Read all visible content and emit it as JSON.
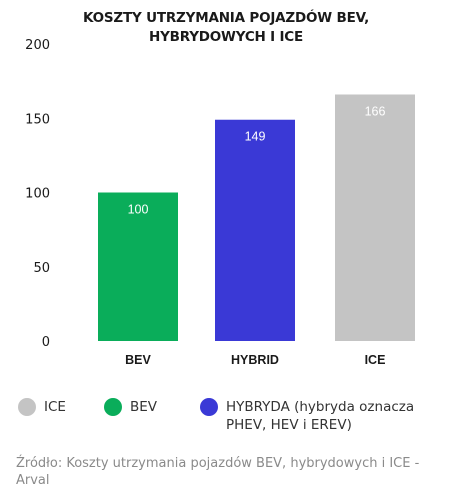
{
  "title": {
    "line1": "KOSZTY UTRZYMANIA POJAZDÓW BEV,",
    "line2": "HYBRYDOWYCH I ICE"
  },
  "chart_data": {
    "type": "bar",
    "title": "KOSZTY UTRZYMANIA POJAZDÓW BEV, HYBRYDOWYCH I ICE",
    "categories": [
      "BEV",
      "HYBRID",
      "ICE"
    ],
    "values": [
      100,
      149,
      166
    ],
    "data_labels": [
      "100",
      "149",
      "166"
    ],
    "colors": [
      "#0aad5a",
      "#3a39d6",
      "#c4c4c4"
    ],
    "ylim": [
      0,
      200
    ],
    "yticks": [
      "0",
      "50",
      "100",
      "150",
      "200"
    ],
    "grid": false,
    "legend_position": "bottom"
  },
  "legend": [
    {
      "label": "ICE",
      "color": "#c4c4c4"
    },
    {
      "label": "BEV",
      "color": "#0aad5a"
    },
    {
      "label": "HYBRYDA (hybryda oznacza",
      "label2": "PHEV, HEV i EREV)",
      "color": "#3a39d6"
    }
  ],
  "source": {
    "text": "Źródło: Koszty utrzymania pojazdów BEV, hybrydowych i ICE - Arval"
  }
}
